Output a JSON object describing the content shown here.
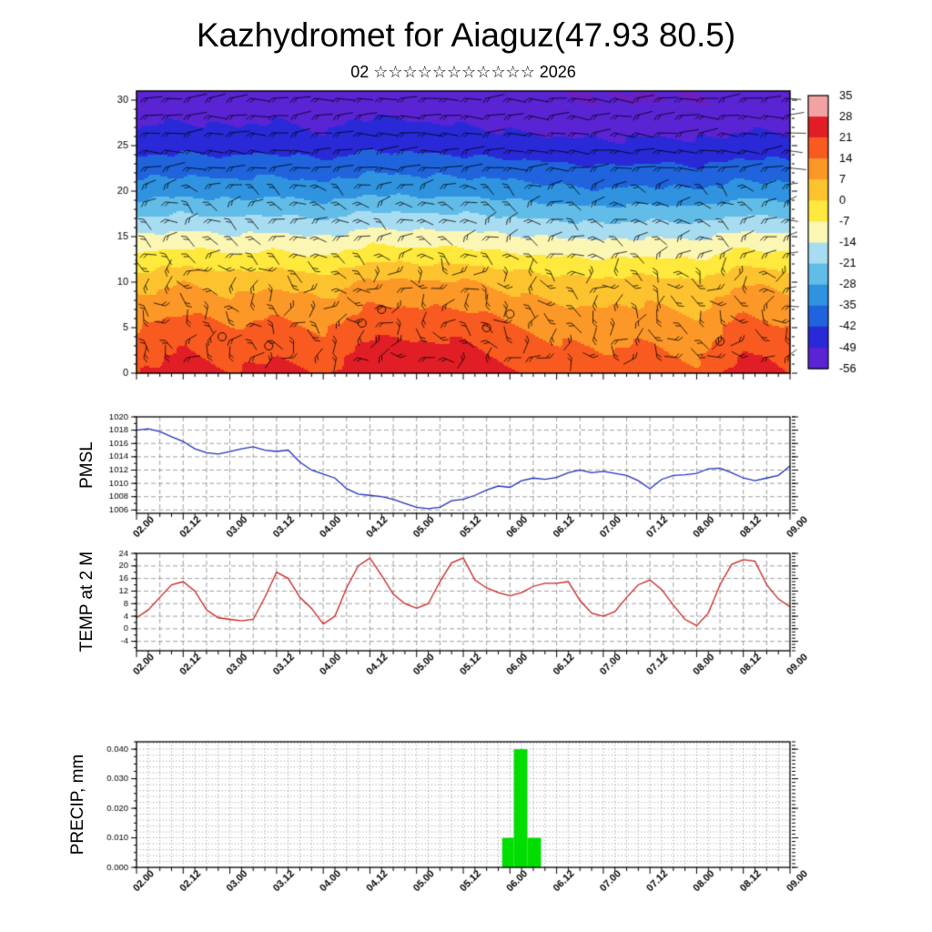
{
  "title": "Kazhydromet for Aiaguz(47.93 80.5)",
  "subtitle": "02 ☆☆☆☆☆☆☆☆☆☆☆ 2026",
  "panel_labels": {
    "pmsl": "PMSL",
    "temp": "TEMP at 2 M",
    "precip": "PRECIP, mm"
  },
  "time_labels": [
    "02.00",
    "02.12",
    "03.00",
    "03.12",
    "04.00",
    "04.12",
    "05.00",
    "05.12",
    "06.00",
    "06.12",
    "07.00",
    "07.12",
    "08.00",
    "08.12",
    "09.00"
  ],
  "time_label_step_hours": 12,
  "total_hours": 168,
  "chart_data": [
    {
      "type": "heatmap",
      "name": "temperature-height-cross-section",
      "ylim": [
        0,
        31
      ],
      "ytick_values": [
        0,
        5,
        10,
        15,
        20,
        25,
        30
      ],
      "levels": [
        0,
        5,
        10,
        15,
        20,
        25,
        30
      ],
      "time_step_hours": 12,
      "values": [
        [
          21,
          25,
          21,
          24,
          20,
          27,
          26,
          26,
          22,
          19,
          17,
          19,
          15,
          25,
          21
        ],
        [
          14,
          18,
          14,
          17,
          13,
          20,
          19,
          19,
          15,
          12,
          11,
          12,
          9,
          18,
          14
        ],
        [
          4,
          7,
          4,
          6,
          3,
          9,
          8,
          8,
          5,
          3,
          2,
          3,
          1,
          7,
          4
        ],
        [
          -13,
          -11,
          -13,
          -12,
          -14,
          -10,
          -11,
          -11,
          -13,
          -14,
          -15,
          -14,
          -15,
          -11,
          -13
        ],
        [
          -31,
          -30,
          -31,
          -30,
          -32,
          -29,
          -30,
          -30,
          -31,
          -33,
          -34,
          -33,
          -34,
          -31,
          -32
        ],
        [
          -45,
          -44,
          -45,
          -44,
          -46,
          -43,
          -44,
          -45,
          -46,
          -47,
          -48,
          -47,
          -48,
          -46,
          -46
        ],
        [
          -54,
          -53,
          -54,
          -53,
          -55,
          -52,
          -53,
          -54,
          -55,
          -56,
          -56,
          -56,
          -56,
          -55,
          -55
        ]
      ],
      "wind_barbs": true,
      "colorbar": {
        "tick_labels": [
          "35",
          "28",
          "21",
          "14",
          "7",
          "0",
          "-7",
          "-14",
          "-21",
          "-28",
          "-35",
          "-42",
          "-49",
          "-56"
        ],
        "boundaries": [
          35,
          28,
          21,
          14,
          7,
          0,
          -7,
          -14,
          -21,
          -28,
          -35,
          -42,
          -49,
          -56
        ],
        "colors": [
          "#f2a2a2",
          "#e11e26",
          "#f85a20",
          "#fc9827",
          "#fdc32f",
          "#fee93c",
          "#fbf6b4",
          "#a8dcf0",
          "#62bce8",
          "#2f93e0",
          "#1f64dc",
          "#2929d8",
          "#5a23d4"
        ],
        "below": "#6b1ec2"
      }
    },
    {
      "type": "line",
      "name": "PMSL",
      "color": "#2233bb",
      "ylim": [
        1005.5,
        1020
      ],
      "ytick_values": [
        1020,
        1018,
        1016,
        1014,
        1012,
        1010,
        1008,
        1006
      ],
      "ytick_labels": [
        "1020",
        "1018",
        "1016",
        "1014",
        "1012",
        "1010",
        "1008",
        "1006"
      ],
      "dt_hours": 3,
      "values": [
        1018.0,
        1018.2,
        1017.8,
        1017.0,
        1016.3,
        1015.2,
        1014.6,
        1014.4,
        1014.8,
        1015.2,
        1015.5,
        1015.0,
        1014.8,
        1015.0,
        1013.2,
        1012.0,
        1011.4,
        1010.8,
        1009.2,
        1008.4,
        1008.2,
        1008.0,
        1007.6,
        1007.0,
        1006.4,
        1006.2,
        1006.4,
        1007.4,
        1007.6,
        1008.2,
        1009.0,
        1009.6,
        1009.4,
        1010.4,
        1010.8,
        1010.6,
        1010.9,
        1011.6,
        1012.0,
        1011.6,
        1011.8,
        1011.5,
        1011.2,
        1010.4,
        1009.2,
        1010.6,
        1011.2,
        1011.3,
        1011.5,
        1012.2,
        1012.3,
        1011.6,
        1010.8,
        1010.4,
        1010.8,
        1011.2,
        1012.6
      ]
    },
    {
      "type": "line",
      "name": "TEMP at 2 M",
      "color": "#cc2222",
      "ylim": [
        -7,
        24
      ],
      "ytick_values": [
        24,
        20,
        16,
        12,
        8,
        4,
        0,
        -4
      ],
      "ytick_labels": [
        "24",
        "20",
        "16",
        "12",
        "8",
        "4",
        "0",
        "-4"
      ],
      "dt_hours": 3,
      "values": [
        3.5,
        6,
        10,
        14,
        15,
        12,
        6,
        3.5,
        3,
        2.5,
        3,
        10,
        18,
        16,
        10,
        6.5,
        1.5,
        4,
        13,
        20,
        22.5,
        17,
        11,
        8,
        6.5,
        8,
        15,
        21,
        22.5,
        15.5,
        13,
        11.5,
        10.5,
        11.5,
        13.5,
        14.5,
        14.5,
        15,
        9,
        5,
        4,
        5.5,
        10,
        14,
        15.5,
        12.5,
        7.5,
        3,
        1,
        5,
        14,
        20.5,
        22,
        21.5,
        14,
        9.5,
        7
      ]
    },
    {
      "type": "bar",
      "name": "PRECIP, mm",
      "color": "#00dd00",
      "ylim": [
        0,
        0.0425
      ],
      "ytick_values": [
        0.04,
        0.03,
        0.02,
        0.01,
        0
      ],
      "ytick_labels": [
        "0.040",
        "0.030",
        "0.020",
        "0.010",
        "0.000"
      ],
      "bars": [
        {
          "t0": 94,
          "t1": 97,
          "v": 0.01
        },
        {
          "t0": 97,
          "t1": 100.5,
          "v": 0.04
        },
        {
          "t0": 100.5,
          "t1": 104,
          "v": 0.01
        }
      ]
    }
  ]
}
